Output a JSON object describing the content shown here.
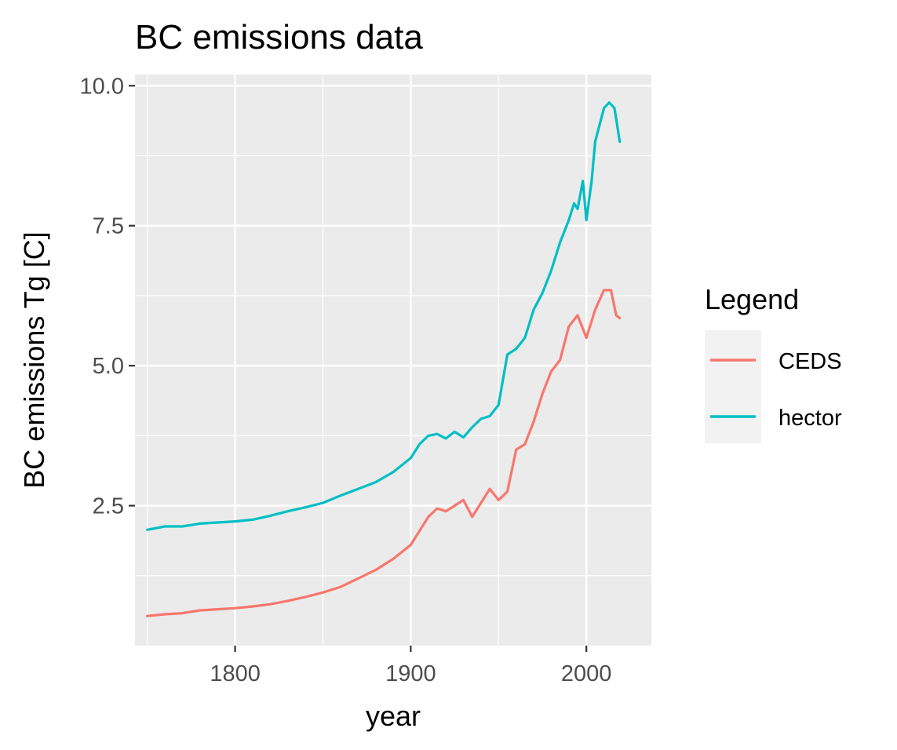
{
  "chart_data": {
    "type": "line",
    "title": "BC emissions data",
    "xlabel": "year",
    "ylabel": "BC emissions Tg [C]",
    "xlim": [
      1743,
      2037
    ],
    "ylim": [
      0.0,
      10.2
    ],
    "x_ticks": [
      1800,
      1900,
      2000
    ],
    "x_tick_labels": [
      "1800",
      "1900",
      "2000"
    ],
    "y_ticks": [
      2.5,
      5.0,
      7.5,
      10.0
    ],
    "y_tick_labels": [
      "2.5",
      "5.0",
      "7.5",
      "10.0"
    ],
    "grid": true,
    "legend": {
      "title": "Legend",
      "position": "right"
    },
    "series": [
      {
        "name": "CEDS",
        "color": "#F8766D",
        "x": [
          1750,
          1760,
          1770,
          1780,
          1790,
          1800,
          1810,
          1820,
          1830,
          1840,
          1850,
          1860,
          1870,
          1880,
          1890,
          1900,
          1905,
          1910,
          1915,
          1920,
          1925,
          1930,
          1935,
          1940,
          1945,
          1950,
          1955,
          1960,
          1965,
          1970,
          1975,
          1980,
          1985,
          1990,
          1995,
          2000,
          2005,
          2010,
          2014,
          2017,
          2019
        ],
        "y": [
          0.53,
          0.56,
          0.58,
          0.63,
          0.65,
          0.67,
          0.7,
          0.74,
          0.8,
          0.87,
          0.95,
          1.05,
          1.2,
          1.35,
          1.55,
          1.8,
          2.05,
          2.3,
          2.45,
          2.4,
          2.5,
          2.6,
          2.3,
          2.55,
          2.8,
          2.6,
          2.75,
          3.5,
          3.6,
          4.0,
          4.5,
          4.9,
          5.1,
          5.7,
          5.9,
          5.5,
          6.0,
          6.35,
          6.35,
          5.9,
          5.85
        ]
      },
      {
        "name": "hector",
        "color": "#00BFC4",
        "x": [
          1750,
          1760,
          1770,
          1780,
          1790,
          1800,
          1810,
          1820,
          1830,
          1840,
          1850,
          1860,
          1870,
          1880,
          1890,
          1900,
          1905,
          1910,
          1915,
          1920,
          1925,
          1930,
          1935,
          1940,
          1945,
          1950,
          1955,
          1960,
          1965,
          1970,
          1975,
          1980,
          1985,
          1990,
          1993,
          1995,
          1998,
          2000,
          2003,
          2005,
          2010,
          2013,
          2016,
          2019
        ],
        "y": [
          2.07,
          2.13,
          2.13,
          2.18,
          2.2,
          2.22,
          2.25,
          2.32,
          2.4,
          2.47,
          2.55,
          2.68,
          2.8,
          2.92,
          3.1,
          3.35,
          3.6,
          3.75,
          3.78,
          3.7,
          3.82,
          3.72,
          3.9,
          4.05,
          4.1,
          4.3,
          5.2,
          5.3,
          5.5,
          6.0,
          6.3,
          6.7,
          7.2,
          7.6,
          7.9,
          7.8,
          8.3,
          7.6,
          8.3,
          9.0,
          9.6,
          9.7,
          9.6,
          9.0
        ]
      }
    ]
  }
}
